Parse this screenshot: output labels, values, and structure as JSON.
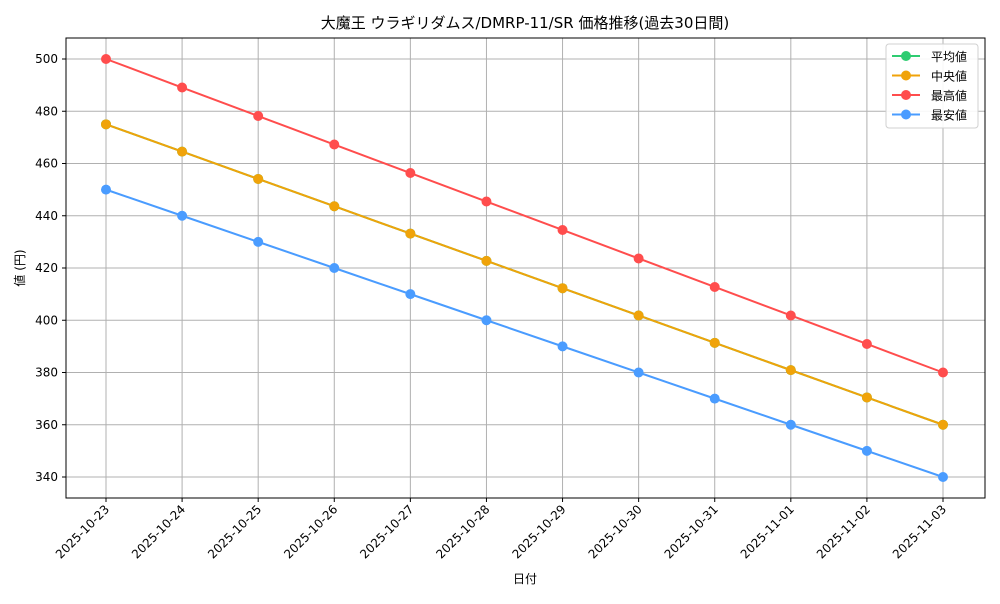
{
  "chart_data": {
    "type": "line",
    "title": "大魔王 ウラギリダムス/DMRP-11/SR 価格推移(過去30日間)",
    "xlabel": "日付",
    "ylabel": "値 (円)",
    "categories": [
      "2025-10-23",
      "2025-10-24",
      "2025-10-25",
      "2025-10-26",
      "2025-10-27",
      "2025-10-28",
      "2025-10-29",
      "2025-10-30",
      "2025-10-31",
      "2025-11-01",
      "2025-11-02",
      "2025-11-03"
    ],
    "series": [
      {
        "name": "平均値",
        "color": "#2ecc71",
        "values": [
          475,
          464.55,
          454.09,
          443.64,
          433.18,
          422.73,
          412.27,
          401.82,
          391.36,
          380.91,
          370.45,
          360
        ]
      },
      {
        "name": "中央値",
        "color": "#f0a30a",
        "values": [
          475,
          464.55,
          454.09,
          443.64,
          433.18,
          422.73,
          412.27,
          401.82,
          391.36,
          380.91,
          370.45,
          360
        ]
      },
      {
        "name": "最高値",
        "color": "#ff4d4d",
        "values": [
          500,
          489.09,
          478.18,
          467.27,
          456.36,
          445.45,
          434.55,
          423.64,
          412.73,
          401.82,
          390.91,
          380
        ]
      },
      {
        "name": "最安値",
        "color": "#4a9cff",
        "values": [
          450,
          440,
          430,
          420,
          410,
          400,
          390,
          380,
          370,
          360,
          350,
          340
        ]
      }
    ],
    "yticks": [
      340,
      360,
      380,
      400,
      420,
      440,
      460,
      480,
      500
    ],
    "ylim": [
      332.5,
      507.5
    ],
    "grid": true,
    "legend_position": "upper right"
  }
}
